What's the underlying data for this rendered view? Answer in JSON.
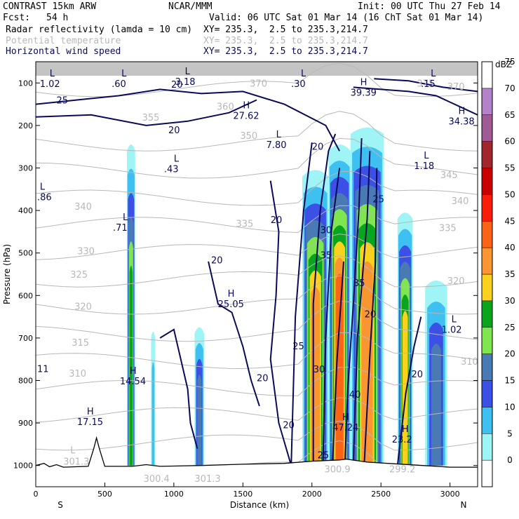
{
  "header": {
    "model": "CONTRAST 15km ARW",
    "org": "NCAR/MMM",
    "init": "Init: 00 UTC Thu 27 Feb 14",
    "fcst_label": "Fcst:",
    "fcst_value": "54 h",
    "valid": "Valid: 06 UTC Sat 01 Mar 14 (16 ChT Sat 01 Mar 14)",
    "fields": [
      {
        "name": "Radar reflectivity (lamda = 10 cm)",
        "xy": "XY= 235.3,  2.5 to 235.3,214.7"
      },
      {
        "name": "Potential temperature",
        "xy": "XY= 235.3,  2.5 to 235.3,214.7"
      },
      {
        "name": "Horizontal wind speed",
        "xy": "XY= 235.3,  2.5 to 235.3,214.7"
      }
    ]
  },
  "colors": {
    "potential_temperature": "#b8b8b8",
    "wind_speed": "#0a0a5a",
    "terrain": "#000000"
  },
  "chart_data": {
    "type": "heatmap",
    "title": "Radar reflectivity cross-section with potential temperature and horizontal wind speed",
    "xlabel": "Distance (km)",
    "ylabel": "Pressure (hPa)",
    "xlim": [
      0,
      3200
    ],
    "ylim": [
      1050,
      50
    ],
    "x_ticks": [
      0,
      500,
      1000,
      1500,
      2000,
      2500,
      3000
    ],
    "y_ticks": [
      100,
      200,
      300,
      400,
      500,
      600,
      700,
      800,
      900,
      1000
    ],
    "x_end_labels": {
      "left": "S",
      "right": "N"
    },
    "colorbar": {
      "unit": "dBZ",
      "levels": [
        0,
        5,
        10,
        15,
        20,
        25,
        30,
        35,
        40,
        45,
        50,
        55,
        60,
        65,
        70,
        75
      ],
      "colors": [
        "#ffffff",
        "#9ff5f5",
        "#3ec0f0",
        "#3c50e6",
        "#4a7ab4",
        "#80e650",
        "#0aa51e",
        "#fad21e",
        "#fa9632",
        "#fa6414",
        "#fa1e0a",
        "#c80000",
        "#a0282d",
        "#a05a96",
        "#b482c8",
        "#ffffff"
      ]
    },
    "cells": [
      {
        "x0": 660,
        "x1": 720,
        "p_top": 240,
        "p_bot": 1000,
        "max_dbz": 30
      },
      {
        "x0": 835,
        "x1": 865,
        "p_top": 680,
        "p_bot": 1000,
        "max_dbz": 10
      },
      {
        "x0": 1150,
        "x1": 1220,
        "p_top": 670,
        "p_bot": 1000,
        "max_dbz": 20
      },
      {
        "x0": 1930,
        "x1": 2120,
        "p_top": 300,
        "p_bot": 1000,
        "max_dbz": 40
      },
      {
        "x0": 2120,
        "x1": 2280,
        "p_top": 240,
        "p_bot": 1000,
        "max_dbz": 45
      },
      {
        "x0": 2280,
        "x1": 2520,
        "p_top": 200,
        "p_bot": 1000,
        "max_dbz": 40
      },
      {
        "x0": 2620,
        "x1": 2730,
        "p_top": 400,
        "p_bot": 1000,
        "max_dbz": 35
      },
      {
        "x0": 2820,
        "x1": 2980,
        "p_top": 560,
        "p_bot": 1000,
        "max_dbz": 20
      }
    ],
    "theta_labels": [
      {
        "text": "370",
        "x": 1550,
        "p": 100
      },
      {
        "text": "375",
        "x": 2760,
        "p": 100
      },
      {
        "text": "370",
        "x": 2980,
        "p": 108
      },
      {
        "text": "360",
        "x": 1310,
        "p": 155
      },
      {
        "text": "355",
        "x": 770,
        "p": 180
      },
      {
        "text": "350",
        "x": 1480,
        "p": 223
      },
      {
        "text": "345",
        "x": 2930,
        "p": 316
      },
      {
        "text": "340",
        "x": 280,
        "p": 390
      },
      {
        "text": "340",
        "x": 3010,
        "p": 377
      },
      {
        "text": "335",
        "x": 1450,
        "p": 430
      },
      {
        "text": "335",
        "x": 2920,
        "p": 440
      },
      {
        "text": "330",
        "x": 300,
        "p": 495
      },
      {
        "text": "325",
        "x": 250,
        "p": 550
      },
      {
        "text": "320",
        "x": 280,
        "p": 625
      },
      {
        "text": "320",
        "x": 2980,
        "p": 565
      },
      {
        "text": "315",
        "x": 260,
        "p": 710
      },
      {
        "text": "310",
        "x": 240,
        "p": 783
      },
      {
        "text": "310",
        "x": 3080,
        "p": 755
      },
      {
        "text": "300.4",
        "x": 780,
        "p": 1030
      },
      {
        "text": "301.3",
        "x": 1150,
        "p": 1030
      },
      {
        "text": "300.9",
        "x": 2090,
        "p": 1008
      },
      {
        "text": "299.2",
        "x": 2560,
        "p": 1008
      }
    ],
    "theta_markers": [
      {
        "kind": "L",
        "value": "301.3",
        "x": 250,
        "p": 975
      }
    ],
    "wind_labels": [
      {
        "text": "25",
        "x": 150,
        "p": 140
      },
      {
        "text": "20",
        "x": 980,
        "p": 103
      },
      {
        "text": "20",
        "x": 960,
        "p": 210
      },
      {
        "text": "20",
        "x": 1700,
        "p": 421
      },
      {
        "text": "20",
        "x": 1270,
        "p": 516
      },
      {
        "text": "20",
        "x": 1600,
        "p": 793
      },
      {
        "text": "20",
        "x": 1790,
        "p": 904
      },
      {
        "text": "25",
        "x": 1860,
        "p": 718
      },
      {
        "text": "20",
        "x": 2000,
        "p": 249
      },
      {
        "text": "25",
        "x": 2440,
        "p": 373
      },
      {
        "text": "30",
        "x": 2060,
        "p": 445
      },
      {
        "text": "35",
        "x": 2060,
        "p": 505
      },
      {
        "text": "35",
        "x": 2300,
        "p": 570
      },
      {
        "text": "30",
        "x": 2010,
        "p": 773
      },
      {
        "text": "40",
        "x": 2270,
        "p": 832
      },
      {
        "text": "25",
        "x": 2040,
        "p": 975
      },
      {
        "text": "20",
        "x": 2380,
        "p": 643
      },
      {
        "text": "20",
        "x": 2720,
        "p": 784
      }
    ],
    "wind_markers": [
      {
        "kind": "L",
        "value": "1.02",
        "x": 100,
        "p": 90
      },
      {
        "kind": "L",
        "value": ".60",
        "x": 620,
        "p": 90
      },
      {
        "kind": "L",
        "value": "3.18",
        "x": 1080,
        "p": 85
      },
      {
        "kind": "L",
        "value": ".30",
        "x": 1920,
        "p": 90
      },
      {
        "kind": "L",
        "value": ".15",
        "x": 2860,
        "p": 90
      },
      {
        "kind": "H",
        "value": "39.39",
        "x": 2350,
        "p": 110
      },
      {
        "kind": "H",
        "value": "27.62",
        "x": 1500,
        "p": 165
      },
      {
        "kind": "H",
        "value": "34.38",
        "x": 3060,
        "p": 178
      },
      {
        "kind": "L",
        "value": "7.80",
        "x": 1740,
        "p": 233
      },
      {
        "kind": "L",
        "value": ".43",
        "x": 1000,
        "p": 290
      },
      {
        "kind": "L",
        "value": "1.18",
        "x": 2810,
        "p": 283
      },
      {
        "kind": "L",
        "value": ".86",
        "x": 30,
        "p": 356
      },
      {
        "kind": "L",
        "value": ".71",
        "x": 630,
        "p": 428
      },
      {
        "kind": "H",
        "value": "25.05",
        "x": 1390,
        "p": 608
      },
      {
        "kind": "L",
        "value": "1.02",
        "x": 3010,
        "p": 668
      },
      {
        "kind": "",
        "value": "11",
        "x": 60,
        "p": 760
      },
      {
        "kind": "H",
        "value": "14.54",
        "x": 680,
        "p": 789
      },
      {
        "kind": "H",
        "value": "17.15",
        "x": 370,
        "p": 885
      },
      {
        "kind": "H",
        "value": "47.24",
        "x": 2220,
        "p": 898
      },
      {
        "kind": "H",
        "value": "23.2",
        "x": 2650,
        "p": 926
      }
    ],
    "terrain": [
      [
        0,
        1000
      ],
      [
        60,
        995
      ],
      [
        100,
        1003
      ],
      [
        150,
        998
      ],
      [
        200,
        1004
      ],
      [
        380,
        1002
      ],
      [
        420,
        960
      ],
      [
        440,
        935
      ],
      [
        460,
        960
      ],
      [
        500,
        1002
      ],
      [
        700,
        1002
      ],
      [
        800,
        998
      ],
      [
        900,
        1002
      ],
      [
        1200,
        1000
      ],
      [
        1500,
        997
      ],
      [
        1800,
        995
      ],
      [
        2000,
        990
      ],
      [
        2200,
        987
      ],
      [
        2250,
        985
      ],
      [
        2400,
        992
      ],
      [
        2600,
        996
      ],
      [
        2800,
        1000
      ],
      [
        3000,
        1004
      ],
      [
        3200,
        1004
      ]
    ]
  }
}
